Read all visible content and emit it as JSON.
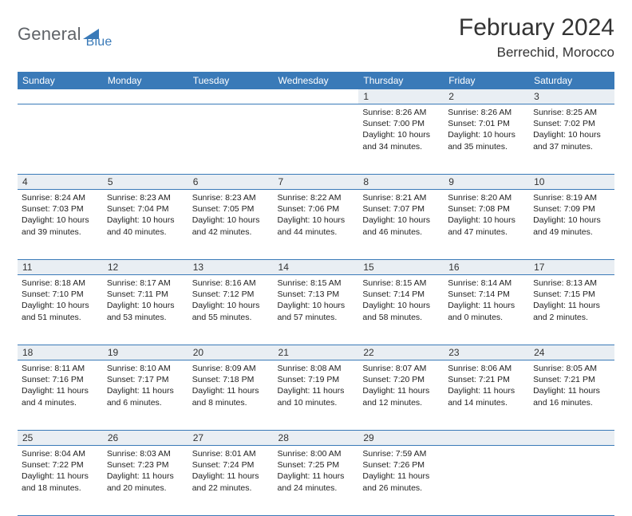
{
  "logo": {
    "text1": "General",
    "text2": "Blue"
  },
  "title": "February 2024",
  "location": "Berrechid, Morocco",
  "colors": {
    "header_bg": "#3a7ab8",
    "num_row_bg": "#e9eef3",
    "border": "#3a7ab8",
    "text": "#333333"
  },
  "day_headers": [
    "Sunday",
    "Monday",
    "Tuesday",
    "Wednesday",
    "Thursday",
    "Friday",
    "Saturday"
  ],
  "weeks": [
    [
      null,
      null,
      null,
      null,
      {
        "n": "1",
        "sr": "8:26 AM",
        "ss": "7:00 PM",
        "dl": "10 hours and 34 minutes."
      },
      {
        "n": "2",
        "sr": "8:26 AM",
        "ss": "7:01 PM",
        "dl": "10 hours and 35 minutes."
      },
      {
        "n": "3",
        "sr": "8:25 AM",
        "ss": "7:02 PM",
        "dl": "10 hours and 37 minutes."
      }
    ],
    [
      {
        "n": "4",
        "sr": "8:24 AM",
        "ss": "7:03 PM",
        "dl": "10 hours and 39 minutes."
      },
      {
        "n": "5",
        "sr": "8:23 AM",
        "ss": "7:04 PM",
        "dl": "10 hours and 40 minutes."
      },
      {
        "n": "6",
        "sr": "8:23 AM",
        "ss": "7:05 PM",
        "dl": "10 hours and 42 minutes."
      },
      {
        "n": "7",
        "sr": "8:22 AM",
        "ss": "7:06 PM",
        "dl": "10 hours and 44 minutes."
      },
      {
        "n": "8",
        "sr": "8:21 AM",
        "ss": "7:07 PM",
        "dl": "10 hours and 46 minutes."
      },
      {
        "n": "9",
        "sr": "8:20 AM",
        "ss": "7:08 PM",
        "dl": "10 hours and 47 minutes."
      },
      {
        "n": "10",
        "sr": "8:19 AM",
        "ss": "7:09 PM",
        "dl": "10 hours and 49 minutes."
      }
    ],
    [
      {
        "n": "11",
        "sr": "8:18 AM",
        "ss": "7:10 PM",
        "dl": "10 hours and 51 minutes."
      },
      {
        "n": "12",
        "sr": "8:17 AM",
        "ss": "7:11 PM",
        "dl": "10 hours and 53 minutes."
      },
      {
        "n": "13",
        "sr": "8:16 AM",
        "ss": "7:12 PM",
        "dl": "10 hours and 55 minutes."
      },
      {
        "n": "14",
        "sr": "8:15 AM",
        "ss": "7:13 PM",
        "dl": "10 hours and 57 minutes."
      },
      {
        "n": "15",
        "sr": "8:15 AM",
        "ss": "7:14 PM",
        "dl": "10 hours and 58 minutes."
      },
      {
        "n": "16",
        "sr": "8:14 AM",
        "ss": "7:14 PM",
        "dl": "11 hours and 0 minutes."
      },
      {
        "n": "17",
        "sr": "8:13 AM",
        "ss": "7:15 PM",
        "dl": "11 hours and 2 minutes."
      }
    ],
    [
      {
        "n": "18",
        "sr": "8:11 AM",
        "ss": "7:16 PM",
        "dl": "11 hours and 4 minutes."
      },
      {
        "n": "19",
        "sr": "8:10 AM",
        "ss": "7:17 PM",
        "dl": "11 hours and 6 minutes."
      },
      {
        "n": "20",
        "sr": "8:09 AM",
        "ss": "7:18 PM",
        "dl": "11 hours and 8 minutes."
      },
      {
        "n": "21",
        "sr": "8:08 AM",
        "ss": "7:19 PM",
        "dl": "11 hours and 10 minutes."
      },
      {
        "n": "22",
        "sr": "8:07 AM",
        "ss": "7:20 PM",
        "dl": "11 hours and 12 minutes."
      },
      {
        "n": "23",
        "sr": "8:06 AM",
        "ss": "7:21 PM",
        "dl": "11 hours and 14 minutes."
      },
      {
        "n": "24",
        "sr": "8:05 AM",
        "ss": "7:21 PM",
        "dl": "11 hours and 16 minutes."
      }
    ],
    [
      {
        "n": "25",
        "sr": "8:04 AM",
        "ss": "7:22 PM",
        "dl": "11 hours and 18 minutes."
      },
      {
        "n": "26",
        "sr": "8:03 AM",
        "ss": "7:23 PM",
        "dl": "11 hours and 20 minutes."
      },
      {
        "n": "27",
        "sr": "8:01 AM",
        "ss": "7:24 PM",
        "dl": "11 hours and 22 minutes."
      },
      {
        "n": "28",
        "sr": "8:00 AM",
        "ss": "7:25 PM",
        "dl": "11 hours and 24 minutes."
      },
      {
        "n": "29",
        "sr": "7:59 AM",
        "ss": "7:26 PM",
        "dl": "11 hours and 26 minutes."
      },
      null,
      null
    ]
  ],
  "labels": {
    "sunrise": "Sunrise: ",
    "sunset": "Sunset: ",
    "daylight": "Daylight: "
  }
}
